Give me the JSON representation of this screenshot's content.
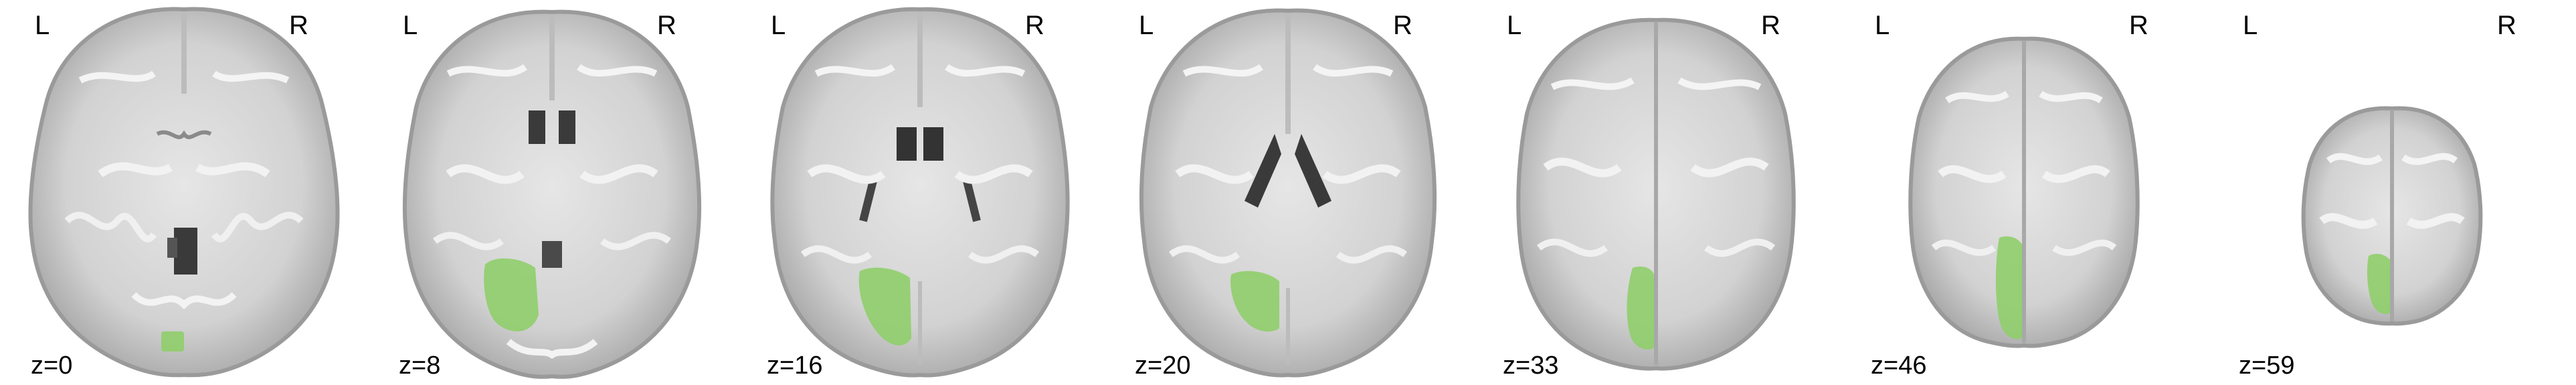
{
  "figure": {
    "orientation": {
      "left": "L",
      "right": "R"
    },
    "overlay_color": "#8fce6a",
    "slices": [
      {
        "label": "z=0"
      },
      {
        "label": "z=8"
      },
      {
        "label": "z=16"
      },
      {
        "label": "z=20"
      },
      {
        "label": "z=33"
      },
      {
        "label": "z=46"
      },
      {
        "label": "z=59"
      }
    ]
  }
}
